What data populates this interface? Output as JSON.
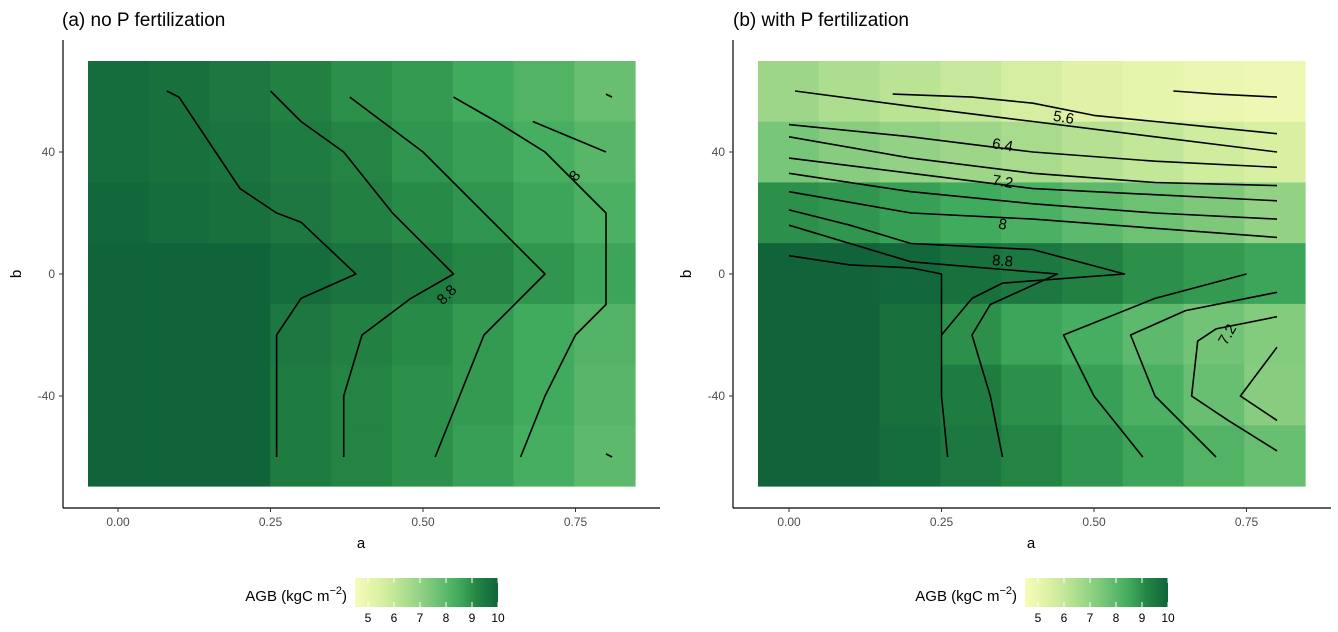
{
  "chart_data": [
    {
      "type": "heatmap",
      "title": "(a) no P fertilization",
      "xlabel": "a",
      "ylabel": "b",
      "x_ticks": [
        "0.00",
        "0.25",
        "0.50",
        "0.75"
      ],
      "y_ticks": [
        "40",
        "0",
        "-40"
      ],
      "xlim": [
        -0.05,
        0.85
      ],
      "ylim": [
        -70,
        70
      ],
      "x_centers": [
        0,
        0.1,
        0.2,
        0.3,
        0.4,
        0.5,
        0.6,
        0.7,
        0.8
      ],
      "y_centers": [
        60,
        40,
        20,
        0,
        -20,
        -40,
        -60
      ],
      "z": [
        [
          9.8,
          9.7,
          9.5,
          9.3,
          9.0,
          8.8,
          8.5,
          8.2,
          7.8
        ],
        [
          9.8,
          9.7,
          9.6,
          9.4,
          9.2,
          8.9,
          8.7,
          8.4,
          8.1
        ],
        [
          9.9,
          9.8,
          9.7,
          9.5,
          9.3,
          9.1,
          8.9,
          8.6,
          8.3
        ],
        [
          10.0,
          10.0,
          10.0,
          9.8,
          9.6,
          9.4,
          9.2,
          8.9,
          8.6
        ],
        [
          10.0,
          10.0,
          10.0,
          9.5,
          9.3,
          9.1,
          8.8,
          8.5,
          8.2
        ],
        [
          10.0,
          10.0,
          10.0,
          9.4,
          9.2,
          9.0,
          8.8,
          8.5,
          8.1
        ],
        [
          10.0,
          10.0,
          10.0,
          9.4,
          9.2,
          9.0,
          8.7,
          8.4,
          8.0
        ]
      ],
      "contours": [
        {
          "label": "",
          "points": [
            [
              0.08,
              60
            ],
            [
              0.1,
              58
            ],
            [
              0.16,
              40
            ],
            [
              0.2,
              28
            ],
            [
              0.26,
              20
            ],
            [
              0.3,
              17
            ],
            [
              0.39,
              0
            ],
            [
              0.3,
              -8
            ],
            [
              0.26,
              -20
            ],
            [
              0.26,
              -60
            ]
          ]
        },
        {
          "label": "8.8",
          "points": [
            [
              0.25,
              60
            ],
            [
              0.3,
              50
            ],
            [
              0.37,
              40
            ],
            [
              0.45,
              20
            ],
            [
              0.55,
              0
            ],
            [
              0.48,
              -8
            ],
            [
              0.4,
              -20
            ],
            [
              0.37,
              -40
            ],
            [
              0.37,
              -60
            ]
          ]
        },
        {
          "label": "",
          "points": [
            [
              0.38,
              58
            ],
            [
              0.5,
              40
            ],
            [
              0.55,
              30
            ],
            [
              0.6,
              20
            ],
            [
              0.7,
              0
            ],
            [
              0.6,
              -20
            ],
            [
              0.56,
              -40
            ],
            [
              0.52,
              -60
            ]
          ]
        },
        {
          "label": "8",
          "points": [
            [
              0.55,
              58
            ],
            [
              0.62,
              50
            ],
            [
              0.7,
              40
            ],
            [
              0.75,
              30
            ],
            [
              0.8,
              20
            ],
            [
              0.8,
              15
            ],
            [
              0.8,
              -10
            ],
            [
              0.75,
              -20
            ],
            [
              0.7,
              -40
            ],
            [
              0.66,
              -60
            ]
          ]
        },
        {
          "label": "",
          "points": [
            [
              0.68,
              50
            ],
            [
              0.8,
              40
            ]
          ]
        },
        {
          "label": "",
          "points": [
            [
              0.8,
              59
            ],
            [
              0.81,
              58
            ]
          ]
        },
        {
          "label": "",
          "points": [
            [
              0.8,
              -59
            ],
            [
              0.81,
              -60
            ]
          ]
        }
      ],
      "contour_label_positions": [
        {
          "text": "8.8",
          "x": 0.54,
          "y": -7,
          "angle": -45
        },
        {
          "text": "8",
          "x": 0.75,
          "y": 32,
          "angle": -50
        }
      ]
    },
    {
      "type": "heatmap",
      "title": "(b) with P fertilization",
      "xlabel": "a",
      "ylabel": "b",
      "x_ticks": [
        "0.00",
        "0.25",
        "0.50",
        "0.75"
      ],
      "y_ticks": [
        "40",
        "0",
        "-40"
      ],
      "xlim": [
        -0.05,
        0.85
      ],
      "ylim": [
        -70,
        70
      ],
      "x_centers": [
        0,
        0.1,
        0.2,
        0.3,
        0.4,
        0.5,
        0.6,
        0.7,
        0.8
      ],
      "y_centers": [
        60,
        40,
        20,
        0,
        -20,
        -40,
        -60
      ],
      "z": [
        [
          6.8,
          6.5,
          6.2,
          5.9,
          5.6,
          5.3,
          5.1,
          4.9,
          4.8
        ],
        [
          7.5,
          7.2,
          7.0,
          6.8,
          6.6,
          6.3,
          6.0,
          5.7,
          5.5
        ],
        [
          9.0,
          8.9,
          8.7,
          8.5,
          8.3,
          8.0,
          7.7,
          7.4,
          7.0
        ],
        [
          10.0,
          10.0,
          9.9,
          9.7,
          9.5,
          9.3,
          9.0,
          8.8,
          8.6
        ],
        [
          10.0,
          10.0,
          9.7,
          9.0,
          8.6,
          8.4,
          8.0,
          7.6,
          7.3
        ],
        [
          10.0,
          10.0,
          9.7,
          9.4,
          9.0,
          8.7,
          8.3,
          7.8,
          7.2
        ],
        [
          10.0,
          10.0,
          9.8,
          9.5,
          9.2,
          8.9,
          8.6,
          8.2,
          7.8
        ]
      ],
      "contours": [
        {
          "label": "",
          "points": [
            [
              0.63,
              60
            ],
            [
              0.7,
              59
            ],
            [
              0.8,
              58
            ]
          ]
        },
        {
          "label": "5.6",
          "points": [
            [
              0.17,
              59
            ],
            [
              0.3,
              58
            ],
            [
              0.4,
              56
            ],
            [
              0.5,
              52
            ],
            [
              0.6,
              50
            ],
            [
              0.7,
              48
            ],
            [
              0.8,
              46
            ]
          ]
        },
        {
          "label": "",
          "points": [
            [
              0.01,
              60
            ],
            [
              0.2,
              55
            ],
            [
              0.4,
              50
            ],
            [
              0.6,
              45
            ],
            [
              0.8,
              40
            ]
          ]
        },
        {
          "label": "6.4",
          "points": [
            [
              0,
              49
            ],
            [
              0.2,
              45
            ],
            [
              0.4,
              40
            ],
            [
              0.6,
              37
            ],
            [
              0.8,
              35
            ]
          ]
        },
        {
          "label": "",
          "points": [
            [
              0,
              45
            ],
            [
              0.2,
              38
            ],
            [
              0.4,
              33
            ],
            [
              0.6,
              30
            ],
            [
              0.8,
              29
            ]
          ]
        },
        {
          "label": "7.2",
          "points": [
            [
              0,
              38
            ],
            [
              0.2,
              33
            ],
            [
              0.4,
              28
            ],
            [
              0.6,
              26
            ],
            [
              0.8,
              24
            ]
          ]
        },
        {
          "label": "",
          "points": [
            [
              0,
              33
            ],
            [
              0.2,
              27
            ],
            [
              0.4,
              23
            ],
            [
              0.6,
              20
            ],
            [
              0.8,
              18
            ]
          ]
        },
        {
          "label": "8",
          "points": [
            [
              0,
              27
            ],
            [
              0.2,
              20
            ],
            [
              0.4,
              18
            ],
            [
              0.6,
              15
            ],
            [
              0.8,
              12
            ]
          ]
        },
        {
          "label": "",
          "points": [
            [
              0,
              21
            ],
            [
              0.1,
              16
            ],
            [
              0.2,
              10
            ],
            [
              0.4,
              8
            ],
            [
              0.55,
              0
            ],
            [
              0.35,
              -3
            ],
            [
              0.3,
              -8
            ],
            [
              0.25,
              -20
            ]
          ]
        },
        {
          "label": "8.8",
          "points": [
            [
              0,
              16
            ],
            [
              0.1,
              10
            ],
            [
              0.2,
              4
            ],
            [
              0.44,
              0
            ],
            [
              0.33,
              -10
            ],
            [
              0.3,
              -20
            ],
            [
              0.33,
              -40
            ],
            [
              0.35,
              -60
            ]
          ]
        },
        {
          "label": "",
          "points": [
            [
              0,
              6
            ],
            [
              0.1,
              3
            ],
            [
              0.2,
              2
            ],
            [
              0.25,
              0
            ],
            [
              0.25,
              -10
            ],
            [
              0.25,
              -40
            ],
            [
              0.26,
              -60
            ]
          ]
        },
        {
          "label": "",
          "points": [
            [
              0.75,
              0
            ],
            [
              0.6,
              -8
            ],
            [
              0.45,
              -20
            ],
            [
              0.5,
              -40
            ],
            [
              0.58,
              -60
            ]
          ]
        },
        {
          "label": "",
          "points": [
            [
              0.8,
              -6
            ],
            [
              0.65,
              -12
            ],
            [
              0.56,
              -20
            ],
            [
              0.6,
              -40
            ],
            [
              0.66,
              -52
            ],
            [
              0.7,
              -60
            ]
          ]
        },
        {
          "label": "7.2",
          "points": [
            [
              0.8,
              -14
            ],
            [
              0.7,
              -18
            ],
            [
              0.67,
              -22
            ],
            [
              0.66,
              -40
            ],
            [
              0.72,
              -48
            ],
            [
              0.8,
              -58
            ]
          ]
        },
        {
          "label": "",
          "points": [
            [
              0.8,
              -24
            ],
            [
              0.74,
              -40
            ],
            [
              0.8,
              -48
            ]
          ]
        }
      ],
      "contour_label_positions": [
        {
          "text": "5.6",
          "x": 0.45,
          "y": 51,
          "angle": 10
        },
        {
          "text": "6.4",
          "x": 0.35,
          "y": 42,
          "angle": 10
        },
        {
          "text": "7.2",
          "x": 0.35,
          "y": 30,
          "angle": 10
        },
        {
          "text": "8",
          "x": 0.35,
          "y": 16,
          "angle": 10
        },
        {
          "text": "8.8",
          "x": 0.35,
          "y": 4,
          "angle": 5
        },
        {
          "text": "7.2",
          "x": 0.72,
          "y": -20,
          "angle": -60
        }
      ]
    }
  ],
  "legend": {
    "title": "AGB (kgC m",
    "title_superscript": "−2",
    "title_close": ")",
    "ticks": [
      "5",
      "6",
      "7",
      "8",
      "9",
      "10"
    ],
    "range": [
      4.5,
      10
    ],
    "color_low": "#f5fabd",
    "color_high": "#10592f"
  }
}
